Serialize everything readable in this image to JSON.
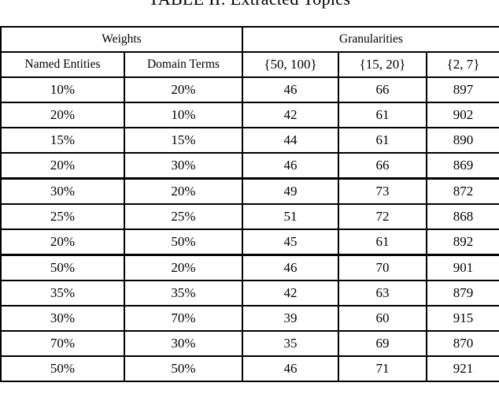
{
  "title": "TABLE II: Extracted Topics",
  "header": {
    "group_weights": "Weights",
    "group_granularities": "Granularities",
    "columns": [
      "Named Entities",
      "Domain Terms",
      "{50, 100}",
      "{15, 20}",
      "{2, 7}"
    ]
  },
  "rows": [
    [
      "10%",
      "20%",
      "46",
      "66",
      "897"
    ],
    [
      "20%",
      "10%",
      "42",
      "61",
      "902"
    ],
    [
      "15%",
      "15%",
      "44",
      "61",
      "890"
    ],
    [
      "20%",
      "30%",
      "46",
      "66",
      "869"
    ],
    [
      "30%",
      "20%",
      "49",
      "73",
      "872"
    ],
    [
      "25%",
      "25%",
      "51",
      "72",
      "868"
    ],
    [
      "20%",
      "50%",
      "45",
      "61",
      "892"
    ],
    [
      "50%",
      "20%",
      "46",
      "70",
      "901"
    ],
    [
      "35%",
      "35%",
      "42",
      "63",
      "879"
    ],
    [
      "30%",
      "70%",
      "39",
      "60",
      "915"
    ],
    [
      "70%",
      "30%",
      "35",
      "69",
      "870"
    ],
    [
      "50%",
      "50%",
      "46",
      "71",
      "921"
    ]
  ]
}
